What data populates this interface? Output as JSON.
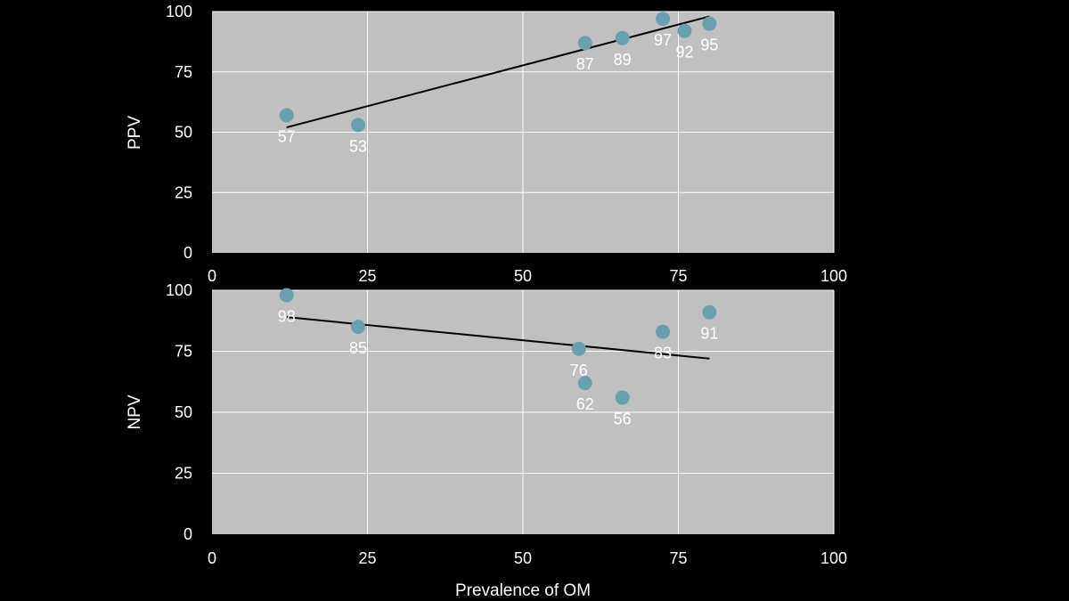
{
  "chart_data": [
    {
      "type": "scatter",
      "ylabel": "PPV",
      "xlabel": "",
      "xlim": [
        0,
        100
      ],
      "ylim": [
        0,
        100
      ],
      "xticks": [
        "0",
        "25",
        "50",
        "75",
        "100"
      ],
      "yticks": [
        "0",
        "25",
        "50",
        "75",
        "100"
      ],
      "grid": true,
      "points": [
        {
          "x": 12,
          "y": 57,
          "label": "57"
        },
        {
          "x": 23.5,
          "y": 53,
          "label": "53"
        },
        {
          "x": 60,
          "y": 87,
          "label": "87"
        },
        {
          "x": 66,
          "y": 89,
          "label": "89"
        },
        {
          "x": 72.5,
          "y": 97,
          "label": "97"
        },
        {
          "x": 76,
          "y": 92,
          "label": "92"
        },
        {
          "x": 80,
          "y": 95,
          "label": "95"
        }
      ],
      "trendline": {
        "x": [
          12,
          80
        ],
        "y": [
          52,
          98
        ]
      }
    },
    {
      "type": "scatter",
      "ylabel": "NPV",
      "xlabel": "Prevalence of OM",
      "xlim": [
        0,
        100
      ],
      "ylim": [
        0,
        100
      ],
      "xticks": [
        "0",
        "25",
        "50",
        "75",
        "100"
      ],
      "yticks": [
        "0",
        "25",
        "50",
        "75",
        "100"
      ],
      "grid": true,
      "points": [
        {
          "x": 12,
          "y": 98,
          "label": "98"
        },
        {
          "x": 23.5,
          "y": 85,
          "label": "85"
        },
        {
          "x": 59,
          "y": 76,
          "label": "76"
        },
        {
          "x": 60,
          "y": 62,
          "label": "62"
        },
        {
          "x": 66,
          "y": 56,
          "label": "56"
        },
        {
          "x": 72.5,
          "y": 83,
          "label": "83"
        },
        {
          "x": 80,
          "y": 91,
          "label": "91"
        }
      ],
      "trendline": {
        "x": [
          12,
          80
        ],
        "y": [
          89,
          72
        ]
      }
    }
  ],
  "colors": {
    "background": "#000000",
    "plot_area": "#c0c0c0",
    "gridline": "#ffffff",
    "marker": "#6a9fb0",
    "trendline": "#000000",
    "text": "#ffffff"
  }
}
